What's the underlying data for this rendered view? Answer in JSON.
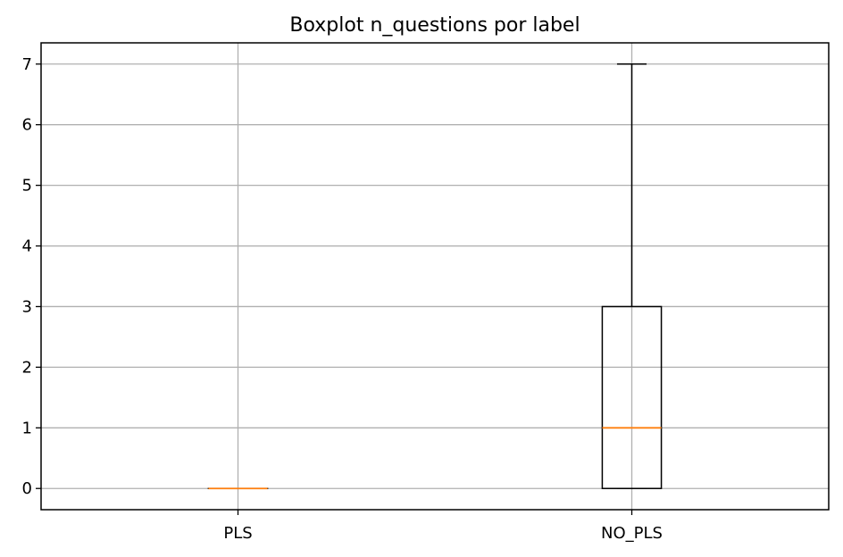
{
  "chart_data": {
    "type": "box",
    "title": "Boxplot n_questions por label",
    "xlabel": "",
    "ylabel": "",
    "categories": [
      "PLS",
      "NO_PLS"
    ],
    "boxes": [
      {
        "category": "PLS",
        "min": 0,
        "q1": 0,
        "median": 0,
        "q3": 0,
        "max": 0
      },
      {
        "category": "NO_PLS",
        "min": 0,
        "q1": 0,
        "median": 1,
        "q3": 3,
        "max": 7
      }
    ],
    "ylim": [
      -0.35,
      7.35
    ],
    "yticks": [
      0,
      1,
      2,
      3,
      4,
      5,
      6,
      7
    ],
    "grid": true,
    "colors": {
      "box": "#000000",
      "median": "#ff7f0e",
      "grid": "#b0b0b0"
    }
  }
}
